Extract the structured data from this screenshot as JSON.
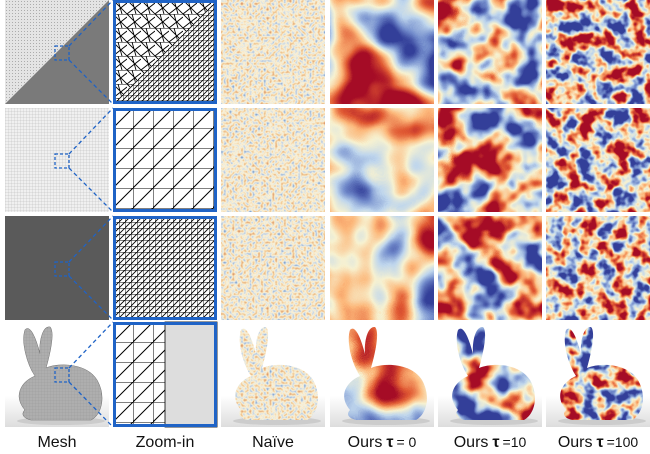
{
  "columns": [
    {
      "label": "Mesh"
    },
    {
      "label": "Zoom-in"
    },
    {
      "label": "Naïve"
    },
    {
      "label": "Ours",
      "symbol": "τ",
      "setting": "= 0"
    },
    {
      "label": "Ours",
      "symbol": "τ",
      "setting": "=10"
    },
    {
      "label": "Ours",
      "symbol": "τ",
      "setting": "=100"
    }
  ]
}
